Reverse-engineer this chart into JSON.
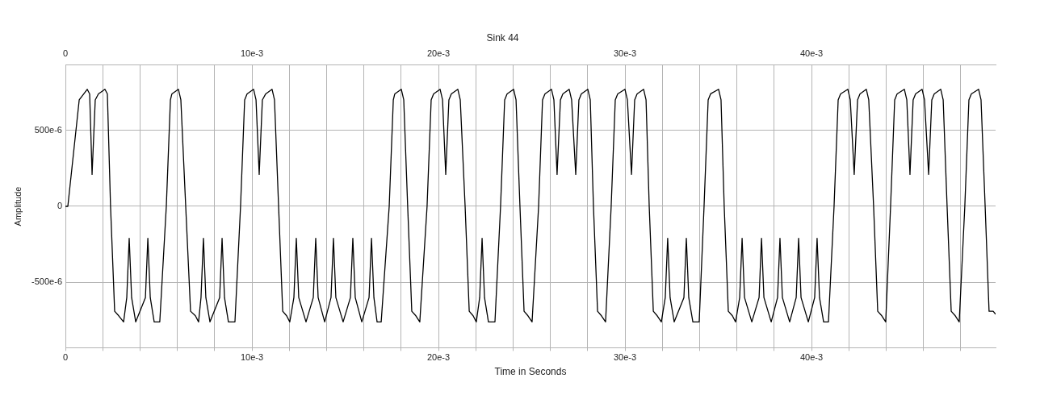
{
  "chart_data": {
    "type": "line",
    "title": "Sink 44",
    "xlabel": "Time in Seconds",
    "ylabel": "Amplitude",
    "grid": true,
    "marker": "none",
    "line_style": "solid",
    "xlim": [
      0,
      0.04987
    ],
    "ylim": [
      -0.00093,
      0.00093
    ],
    "xticks": [
      0,
      {
        "value": 0.002,
        "label": null
      },
      {
        "value": 0.004,
        "label": null
      },
      {
        "value": 0.006,
        "label": null
      },
      {
        "value": 0.008,
        "label": null
      },
      {
        "value": 0.01,
        "label": "10e-3"
      },
      {
        "value": 0.012,
        "label": null
      },
      {
        "value": 0.014,
        "label": null
      },
      {
        "value": 0.016,
        "label": null
      },
      {
        "value": 0.018,
        "label": null
      },
      {
        "value": 0.02,
        "label": "20e-3"
      },
      {
        "value": 0.022,
        "label": null
      },
      {
        "value": 0.024,
        "label": null
      },
      {
        "value": 0.026,
        "label": null
      },
      {
        "value": 0.028,
        "label": null
      },
      {
        "value": 0.03,
        "label": "30e-3"
      },
      {
        "value": 0.032,
        "label": null
      },
      {
        "value": 0.034,
        "label": null
      },
      {
        "value": 0.036,
        "label": null
      },
      {
        "value": 0.038,
        "label": null
      },
      {
        "value": 0.04,
        "label": "40e-3"
      },
      {
        "value": 0.042,
        "label": null
      },
      {
        "value": 0.044,
        "label": null
      },
      {
        "value": 0.046,
        "label": null
      },
      {
        "value": 0.048,
        "label": null
      }
    ],
    "x2lim": [
      0,
      0.04987
    ],
    "x2ticks": [
      0,
      {
        "value": 0.002,
        "label": null
      },
      {
        "value": 0.004,
        "label": null
      },
      {
        "value": 0.006,
        "label": null
      },
      {
        "value": 0.008,
        "label": null
      },
      {
        "value": 0.01,
        "label": "10e-3"
      },
      {
        "value": 0.012,
        "label": null
      },
      {
        "value": 0.014,
        "label": null
      },
      {
        "value": 0.016,
        "label": null
      },
      {
        "value": 0.018,
        "label": null
      },
      {
        "value": 0.02,
        "label": "20e-3"
      },
      {
        "value": 0.022,
        "label": null
      },
      {
        "value": 0.024,
        "label": null
      },
      {
        "value": 0.026,
        "label": null
      },
      {
        "value": 0.028,
        "label": null
      },
      {
        "value": 0.03,
        "label": "30e-3"
      },
      {
        "value": 0.032,
        "label": null
      },
      {
        "value": 0.034,
        "label": null
      },
      {
        "value": 0.036,
        "label": null
      },
      {
        "value": 0.038,
        "label": null
      },
      {
        "value": 0.04,
        "label": "40e-3"
      },
      {
        "value": 0.042,
        "label": null
      },
      {
        "value": 0.044,
        "label": null
      },
      {
        "value": 0.046,
        "label": null
      },
      {
        "value": 0.048,
        "label": null
      }
    ],
    "yticks": [
      {
        "value": -0.0005,
        "label": "-500e-6"
      },
      0,
      {
        "value": 0.0005,
        "label": "500e-6"
      }
    ],
    "series": [
      {
        "color": "#000000",
        "x": [
          0,
          0.00013,
          0.00074,
          0.00117,
          0.0013,
          0.00143,
          0.0016,
          0.00177,
          0.00212,
          0.00225,
          0.00242,
          0.00264,
          0.00286,
          0.00312,
          0.00329,
          0.00342,
          0.00355,
          0.00377,
          0.00429,
          0.00442,
          0.00455,
          0.00476,
          0.00506,
          0.00541,
          0.00563,
          0.00571,
          0.00606,
          0.00619,
          0.00645,
          0.00671,
          0.00697,
          0.00714,
          0.00727,
          0.0074,
          0.00753,
          0.00775,
          0.00827,
          0.0084,
          0.00853,
          0.00874,
          0.00909,
          0.00939,
          0.00961,
          0.00974,
          0.01009,
          0.01022,
          0.01039,
          0.01056,
          0.01074,
          0.01108,
          0.01121,
          0.01143,
          0.01165,
          0.01186,
          0.01203,
          0.01225,
          0.01238,
          0.01251,
          0.0129,
          0.01329,
          0.01342,
          0.01355,
          0.0139,
          0.01424,
          0.01437,
          0.0145,
          0.01489,
          0.01528,
          0.01541,
          0.01554,
          0.01589,
          0.01628,
          0.01641,
          0.01654,
          0.01671,
          0.01693,
          0.01736,
          0.01758,
          0.01766,
          0.01801,
          0.01814,
          0.01835,
          0.01857,
          0.01879,
          0.019,
          0.01939,
          0.01961,
          0.01974,
          0.02009,
          0.02022,
          0.02039,
          0.02056,
          0.02069,
          0.02104,
          0.02117,
          0.02143,
          0.02165,
          0.02186,
          0.02203,
          0.02221,
          0.02234,
          0.02247,
          0.02268,
          0.02303,
          0.02333,
          0.02355,
          0.02368,
          0.02403,
          0.02416,
          0.02437,
          0.02459,
          0.0248,
          0.02502,
          0.02537,
          0.02558,
          0.02571,
          0.02606,
          0.02619,
          0.02636,
          0.02654,
          0.02667,
          0.02701,
          0.02714,
          0.02736,
          0.02753,
          0.02766,
          0.02801,
          0.02814,
          0.02831,
          0.02853,
          0.02874,
          0.02896,
          0.02926,
          0.02948,
          0.02961,
          0.03,
          0.03013,
          0.03035,
          0.03052,
          0.03065,
          0.031,
          0.03113,
          0.0313,
          0.03152,
          0.03173,
          0.03195,
          0.03216,
          0.03229,
          0.03242,
          0.03264,
          0.03316,
          0.03329,
          0.03342,
          0.03364,
          0.03398,
          0.03424,
          0.03446,
          0.03459,
          0.03502,
          0.03515,
          0.03532,
          0.03554,
          0.03576,
          0.03593,
          0.03615,
          0.03628,
          0.03641,
          0.0368,
          0.03719,
          0.03732,
          0.03745,
          0.03784,
          0.03818,
          0.03831,
          0.03844,
          0.03883,
          0.03918,
          0.03931,
          0.03944,
          0.03983,
          0.04017,
          0.0403,
          0.04043,
          0.04065,
          0.04091,
          0.04121,
          0.04143,
          0.04156,
          0.04195,
          0.04208,
          0.04229,
          0.04247,
          0.0426,
          0.04294,
          0.04307,
          0.04333,
          0.04355,
          0.04377,
          0.04398,
          0.04424,
          0.04446,
          0.04459,
          0.04498,
          0.04511,
          0.04528,
          0.04545,
          0.04558,
          0.04593,
          0.04606,
          0.04628,
          0.04645,
          0.04658,
          0.04693,
          0.04706,
          0.04727,
          0.04749,
          0.04771,
          0.04792,
          0.04822,
          0.04844,
          0.04857,
          0.04896,
          0.04909,
          0.04931,
          0.04952,
          0.04974,
          0.04987
        ],
        "values": [
          0,
          0,
          0.0007,
          0.00077,
          0.00074,
          0.00021,
          0.0007,
          0.00074,
          0.00077,
          0.00074,
          0,
          -0.00069,
          -0.00072,
          -0.00076,
          -0.0006,
          -0.00021,
          -0.0006,
          -0.00076,
          -0.0006,
          -0.00021,
          -0.0006,
          -0.00076,
          -0.00076,
          0,
          0.0007,
          0.00074,
          0.00077,
          0.0007,
          0,
          -0.00069,
          -0.00072,
          -0.00076,
          -0.0006,
          -0.00021,
          -0.0006,
          -0.00076,
          -0.0006,
          -0.00021,
          -0.0006,
          -0.00076,
          -0.00076,
          0,
          0.0007,
          0.00074,
          0.00077,
          0.0007,
          0.00021,
          0.0007,
          0.00074,
          0.00077,
          0.0007,
          0,
          -0.00069,
          -0.00072,
          -0.00076,
          -0.0006,
          -0.00021,
          -0.0006,
          -0.00076,
          -0.0006,
          -0.00021,
          -0.0006,
          -0.00076,
          -0.0006,
          -0.00021,
          -0.0006,
          -0.00076,
          -0.0006,
          -0.00021,
          -0.0006,
          -0.00076,
          -0.0006,
          -0.00021,
          -0.0006,
          -0.00076,
          -0.00076,
          0,
          0.0007,
          0.00074,
          0.00077,
          0.0007,
          0,
          -0.00069,
          -0.00072,
          -0.00076,
          0,
          0.0007,
          0.00074,
          0.00077,
          0.0007,
          0.00021,
          0.0007,
          0.00074,
          0.00077,
          0.0007,
          0,
          -0.00069,
          -0.00072,
          -0.00076,
          -0.0006,
          -0.00021,
          -0.0006,
          -0.00076,
          -0.00076,
          0,
          0.0007,
          0.00074,
          0.00077,
          0.0007,
          0,
          -0.00069,
          -0.00072,
          -0.00076,
          0,
          0.0007,
          0.00074,
          0.00077,
          0.0007,
          0.00021,
          0.0007,
          0.00074,
          0.00077,
          0.0007,
          0.00021,
          0.0007,
          0.00074,
          0.00077,
          0.0007,
          0,
          -0.00069,
          -0.00072,
          -0.00076,
          0,
          0.0007,
          0.00074,
          0.00077,
          0.0007,
          0.00021,
          0.0007,
          0.00074,
          0.00077,
          0.0007,
          0,
          -0.00069,
          -0.00072,
          -0.00076,
          -0.0006,
          -0.00021,
          -0.0006,
          -0.00076,
          -0.0006,
          -0.00021,
          -0.0006,
          -0.00076,
          -0.00076,
          0,
          0.0007,
          0.00074,
          0.00077,
          0.0007,
          0,
          -0.00069,
          -0.00072,
          -0.00076,
          -0.0006,
          -0.00021,
          -0.0006,
          -0.00076,
          -0.0006,
          -0.00021,
          -0.0006,
          -0.00076,
          -0.0006,
          -0.00021,
          -0.0006,
          -0.00076,
          -0.0006,
          -0.00021,
          -0.0006,
          -0.00076,
          -0.0006,
          -0.00021,
          -0.0006,
          -0.00076,
          -0.00076,
          0,
          0.0007,
          0.00074,
          0.00077,
          0.0007,
          0.00021,
          0.0007,
          0.00074,
          0.00077,
          0.0007,
          0,
          -0.00069,
          -0.00072,
          -0.00076,
          0,
          0.0007,
          0.00074,
          0.00077,
          0.0007,
          0.00021,
          0.0007,
          0.00074,
          0.00077,
          0.0007,
          0.00021,
          0.0007,
          0.00074,
          0.00077,
          0.0007,
          0,
          -0.00069,
          -0.00072,
          -0.00076,
          0,
          0.0007,
          0.00074,
          0.00077,
          0.0007,
          0,
          -0.00069,
          -0.00069,
          -0.00071
        ]
      }
    ]
  }
}
